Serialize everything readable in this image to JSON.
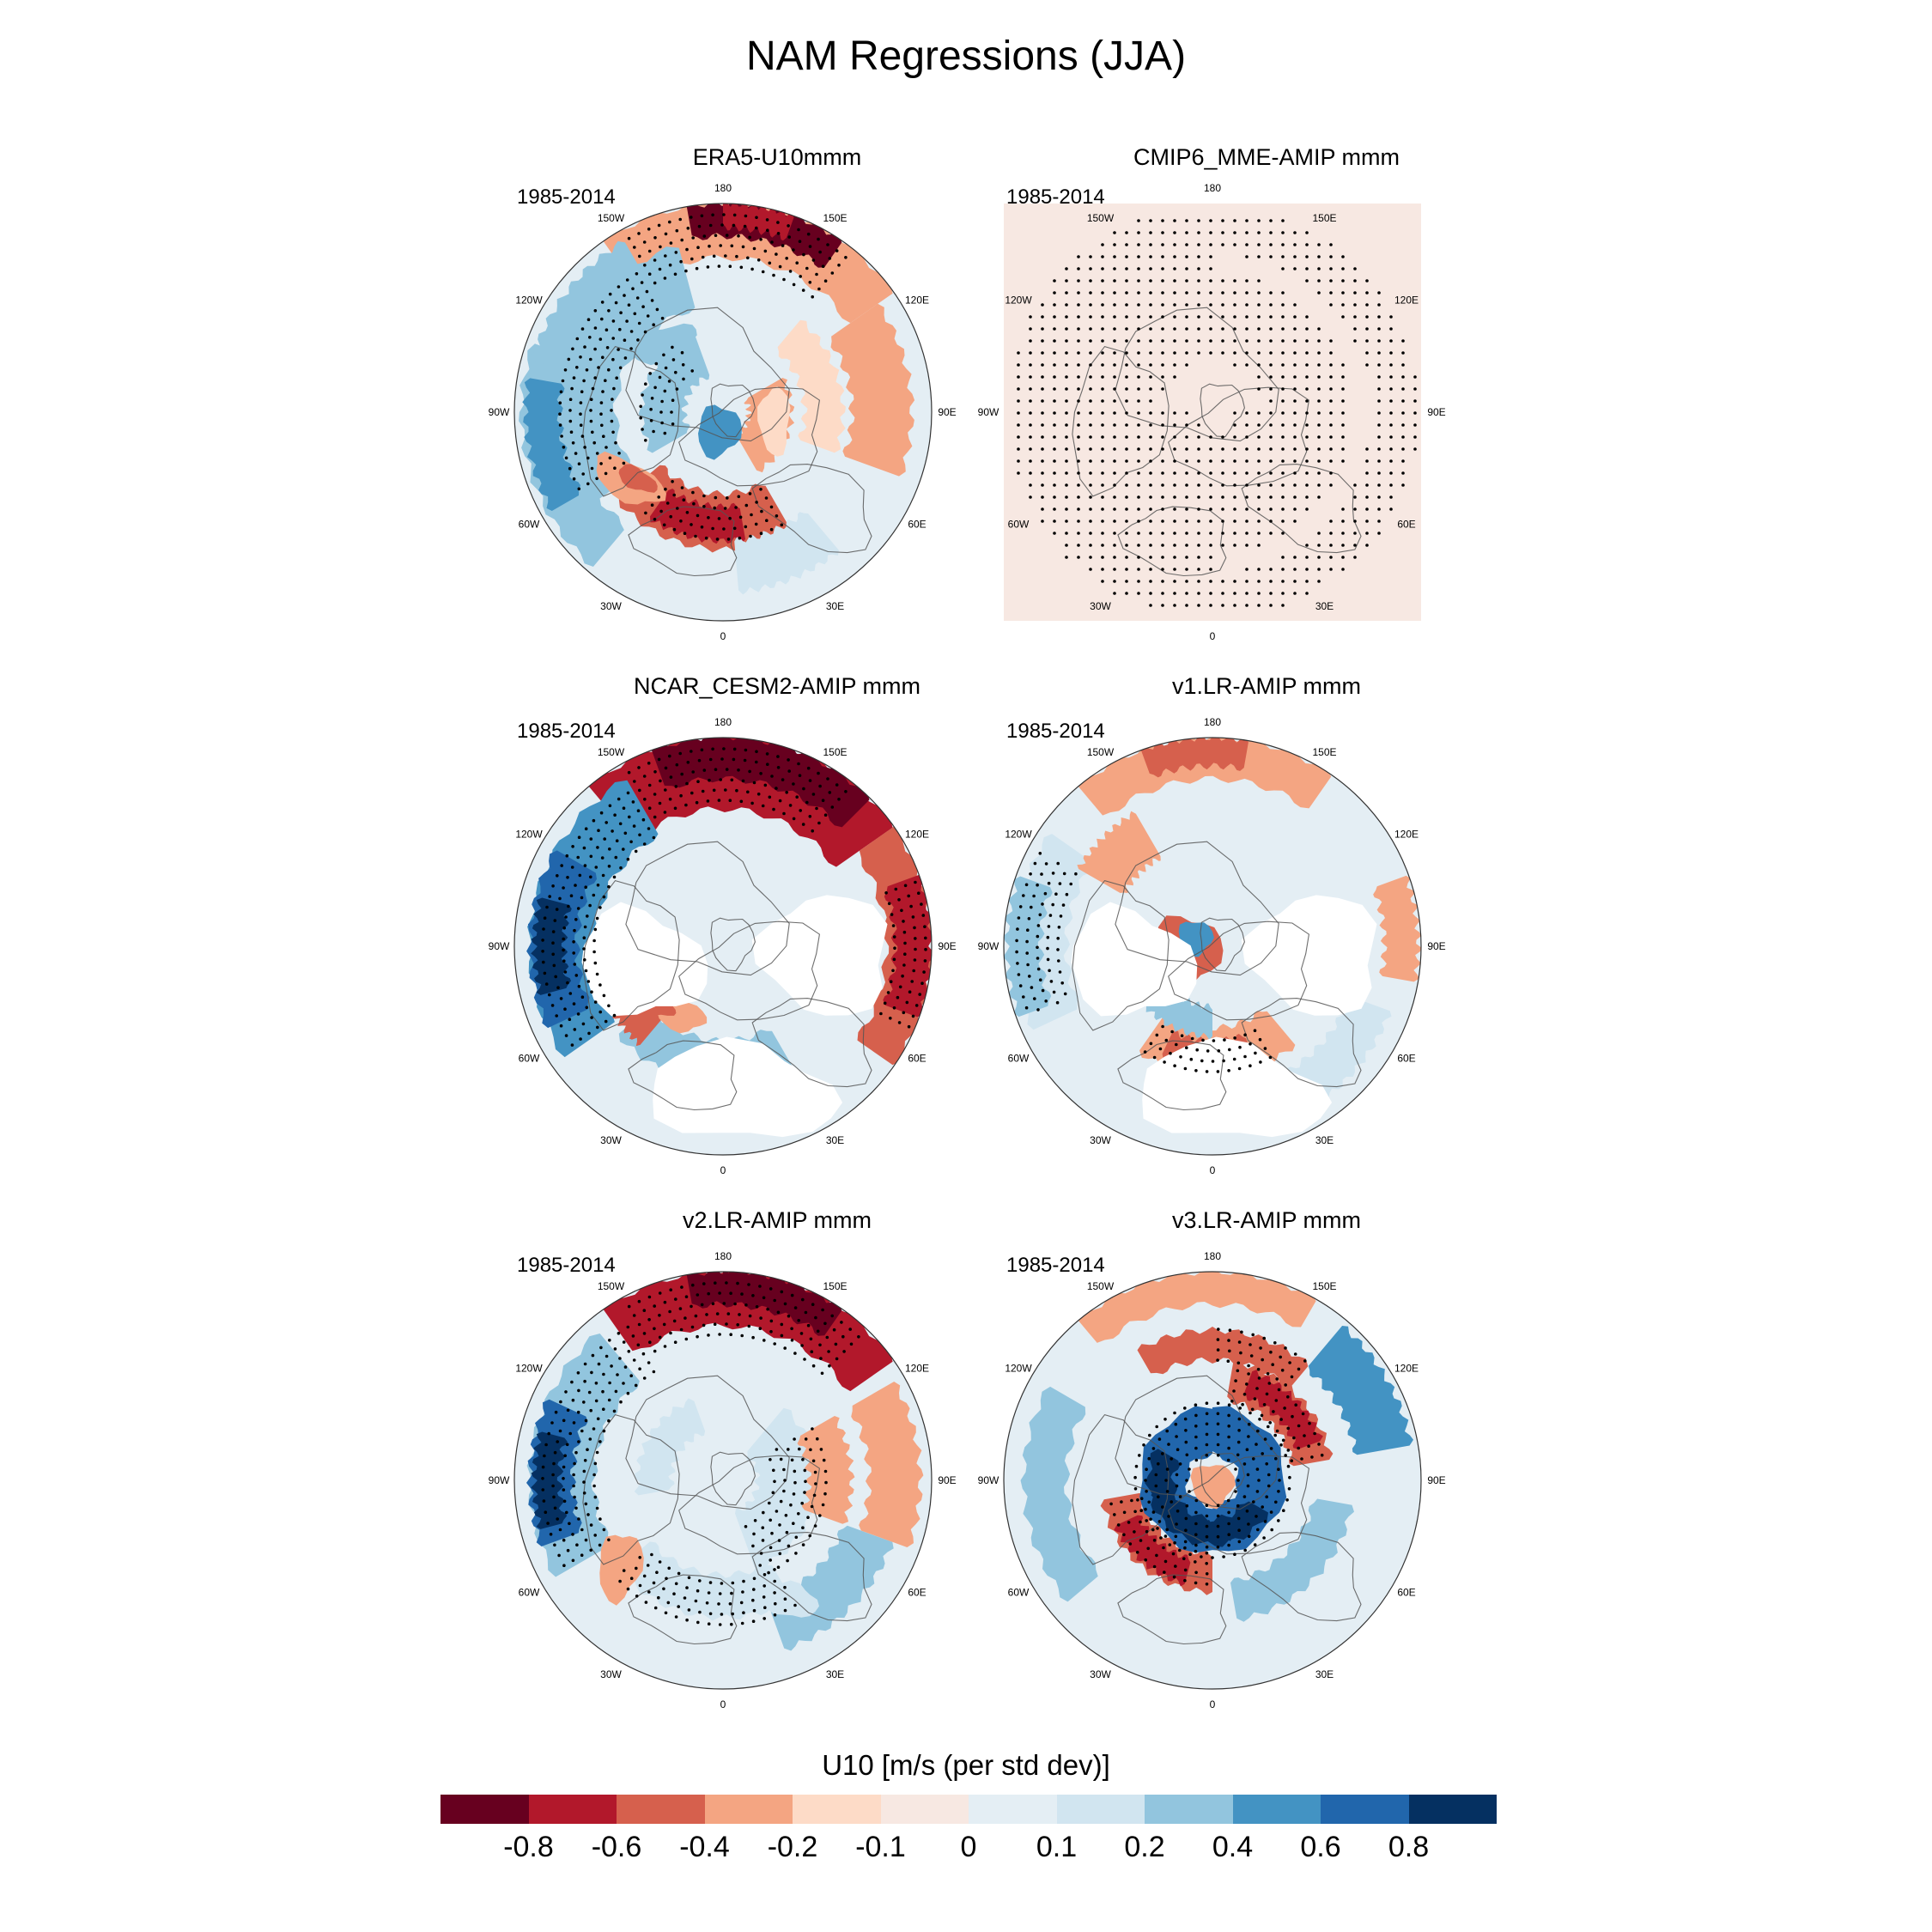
{
  "title": "NAM Regressions (JJA)",
  "period": "1985-2014",
  "lon_labels": [
    "180",
    "150E",
    "120E",
    "90E",
    "60E",
    "30E",
    "0",
    "30W",
    "60W",
    "90W",
    "120W",
    "150W"
  ],
  "panels": [
    {
      "title": "ERA5-U10mmm",
      "mode": "era5"
    },
    {
      "title": "CMIP6_MME-AMIP  mmm",
      "mode": "mme"
    },
    {
      "title": "NCAR_CESM2-AMIP  mmm",
      "mode": "cesm"
    },
    {
      "title": "v1.LR-AMIP  mmm",
      "mode": "v1"
    },
    {
      "title": "v2.LR-AMIP  mmm",
      "mode": "v2"
    },
    {
      "title": "v3.LR-AMIP  mmm",
      "mode": "v3"
    }
  ],
  "colorbar": {
    "title": "U10 [m/s (per std dev)]",
    "labels": [
      "-0.8",
      "-0.6",
      "-0.4",
      "-0.2",
      "-0.1",
      "0",
      "0.1",
      "0.2",
      "0.4",
      "0.6",
      "0.8"
    ],
    "colors": [
      "#67001f",
      "#b2182b",
      "#d6604d",
      "#f4a582",
      "#fddbc7",
      "#f7e8e2",
      "#e4eef4",
      "#d1e5f0",
      "#92c5de",
      "#4393c3",
      "#2166ac",
      "#053061"
    ]
  }
}
